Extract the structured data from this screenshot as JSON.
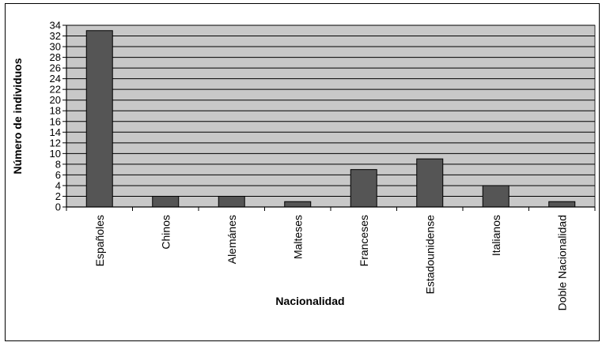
{
  "chart_data": {
    "type": "bar",
    "categories": [
      "Españoles",
      "Chinos",
      "Alemánes",
      "Malteses",
      "Franceses",
      "Estadounidense",
      "Italianos",
      "Doble Nacionalidad"
    ],
    "values": [
      33,
      2,
      2,
      1,
      7,
      9,
      4,
      1
    ],
    "xlabel": "Nacionalidad",
    "ylabel": "Número de individuos",
    "ylim": [
      0,
      34
    ],
    "yticks": [
      0,
      2,
      4,
      6,
      8,
      10,
      12,
      14,
      16,
      18,
      20,
      22,
      24,
      26,
      28,
      30,
      32,
      34
    ],
    "grid": true,
    "legend": "none",
    "colors": {
      "plot_background": "#c8c8c8",
      "bar": "#555555",
      "gridline": "#000000"
    }
  }
}
